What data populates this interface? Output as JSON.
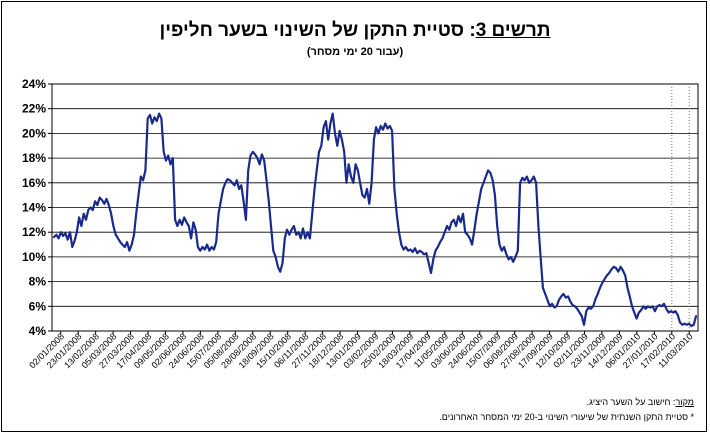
{
  "title": {
    "label": "תרשים 3",
    "text": "סטיית התקן של השינוי בשער חליפין"
  },
  "subtitle": "(עבור 20 ימי מסחר)",
  "footnotes": {
    "source_label": "מקור",
    "source_text": "חישוב על השער היציג.",
    "note": "* סטיית התקן השנתית של שיעורי השינוי ב-20 ימי המסחר האחרונים."
  },
  "chart_data": {
    "type": "line",
    "title": "תרשים 3: סטיית התקן של השינוי בשער חליפין",
    "subtitle": "(עבור 20 ימי מסחר)",
    "ylim": [
      4,
      24
    ],
    "y_ticks": [
      "4%",
      "6%",
      "8%",
      "10%",
      "12%",
      "14%",
      "16%",
      "18%",
      "20%",
      "22%",
      "24%"
    ],
    "x_tick_labels": [
      "02/01/2008",
      "23/01/2008",
      "13/02/2008",
      "05/03/2008",
      "27/03/2008",
      "17/04/2008",
      "09/05/2008",
      "02/06/2008",
      "24/06/2008",
      "15/07/2008",
      "05/08/2008",
      "28/08/2008",
      "18/09/2008",
      "15/10/2008",
      "06/11/2008",
      "27/11/2008",
      "18/12/2008",
      "13/01/2009",
      "03/02/2009",
      "25/02/2009",
      "18/03/2009",
      "17/04/2009",
      "11/05/2009",
      "03/06/2009",
      "24/06/2009",
      "15/07/2009",
      "06/08/2009",
      "27/08/2009",
      "17/09/2009",
      "12/10/2009",
      "02/11/2009",
      "23/11/2009",
      "14/12/2009",
      "06/01/2010",
      "27/01/2010",
      "17/02/2010",
      "11/03/2010"
    ],
    "grid": "horizontal",
    "series": [
      {
        "color": "#1a2a8c",
        "values": [
          11.6,
          11.8,
          11.5,
          12.0,
          11.7,
          11.9,
          11.4,
          12.0,
          10.8,
          11.3,
          12.0,
          13.2,
          12.5,
          13.5,
          13.0,
          13.8,
          14.0,
          13.8,
          14.5,
          14.2,
          14.8,
          14.6,
          14.3,
          14.7,
          14.2,
          13.5,
          12.5,
          11.8,
          11.5,
          11.2,
          11.0,
          10.8,
          11.2,
          10.5,
          11.0,
          11.8,
          13.5,
          15.0,
          16.5,
          16.2,
          17.0,
          21.2,
          21.5,
          20.8,
          21.3,
          21.0,
          21.6,
          21.2,
          18.5,
          17.8,
          18.2,
          17.5,
          18.0,
          13.0,
          12.5,
          13.0,
          12.6,
          13.2,
          12.8,
          12.5,
          11.5,
          12.8,
          12.2,
          10.8,
          10.5,
          10.8,
          10.6,
          11.0,
          10.5,
          10.8,
          10.6,
          11.2,
          13.5,
          14.5,
          15.5,
          16.0,
          16.3,
          16.2,
          16.0,
          15.8,
          16.2,
          15.5,
          15.8,
          14.5,
          13.0,
          17.0,
          18.2,
          18.5,
          18.3,
          18.0,
          17.5,
          18.3,
          17.8,
          16.2,
          14.5,
          12.5,
          10.5,
          10.0,
          9.2,
          8.8,
          9.5,
          11.5,
          12.2,
          11.8,
          12.2,
          12.5,
          11.8,
          12.0,
          11.5,
          12.3,
          11.5,
          12.0,
          11.5,
          13.5,
          15.5,
          17.0,
          18.5,
          19.0,
          20.5,
          21.0,
          19.5,
          20.8,
          21.6,
          20.0,
          19.0,
          20.2,
          19.5,
          18.5,
          16.0,
          17.5,
          16.5,
          16.0,
          17.5,
          17.0,
          16.0,
          15.0,
          14.8,
          15.5,
          14.3,
          16.0,
          19.5,
          20.5,
          20.0,
          20.6,
          20.3,
          20.8,
          20.4,
          20.6,
          20.2,
          15.5,
          13.5,
          12.0,
          11.0,
          10.6,
          10.8,
          10.5,
          10.6,
          10.4,
          10.7,
          10.3,
          10.5,
          10.4,
          10.2,
          10.3,
          9.5,
          8.7,
          9.8,
          10.5,
          10.8,
          11.2,
          11.5,
          12.0,
          12.5,
          12.2,
          12.8,
          13.0,
          12.5,
          13.3,
          12.8,
          13.5,
          12.0,
          11.8,
          11.5,
          11.0,
          12.2,
          13.5,
          14.5,
          15.5,
          16.0,
          16.5,
          17.0,
          16.8,
          16.2,
          15.0,
          12.5,
          11.0,
          10.5,
          10.8,
          10.2,
          9.8,
          10.0,
          9.6,
          10.0,
          10.5,
          16.0,
          16.4,
          16.2,
          16.5,
          16.0,
          16.2,
          16.5,
          16.0,
          12.5,
          10.0,
          7.5,
          7.0,
          6.5,
          6.0,
          6.2,
          5.9,
          6.0,
          6.5,
          6.8,
          7.0,
          6.7,
          6.8,
          6.4,
          6.1,
          6.0,
          5.8,
          5.5,
          5.2,
          4.5,
          5.6,
          5.9,
          5.8,
          6.0,
          6.6,
          7.0,
          7.5,
          7.9,
          8.2,
          8.5,
          8.7,
          9.0,
          9.2,
          9.1,
          8.8,
          9.2,
          8.9,
          8.5,
          7.5,
          6.8,
          6.0,
          5.5,
          5.0,
          5.5,
          5.7,
          6.0,
          5.8,
          6.0,
          5.9,
          6.0,
          5.6,
          6.0,
          6.1,
          6.0,
          6.2,
          5.8,
          5.5,
          5.6,
          5.5,
          5.6,
          5.3,
          4.7,
          4.5,
          4.6,
          4.5,
          4.6,
          4.4,
          4.5,
          5.2
        ]
      }
    ],
    "vertical_markers": [
      "17/02/2010",
      "11/03/2010"
    ]
  }
}
